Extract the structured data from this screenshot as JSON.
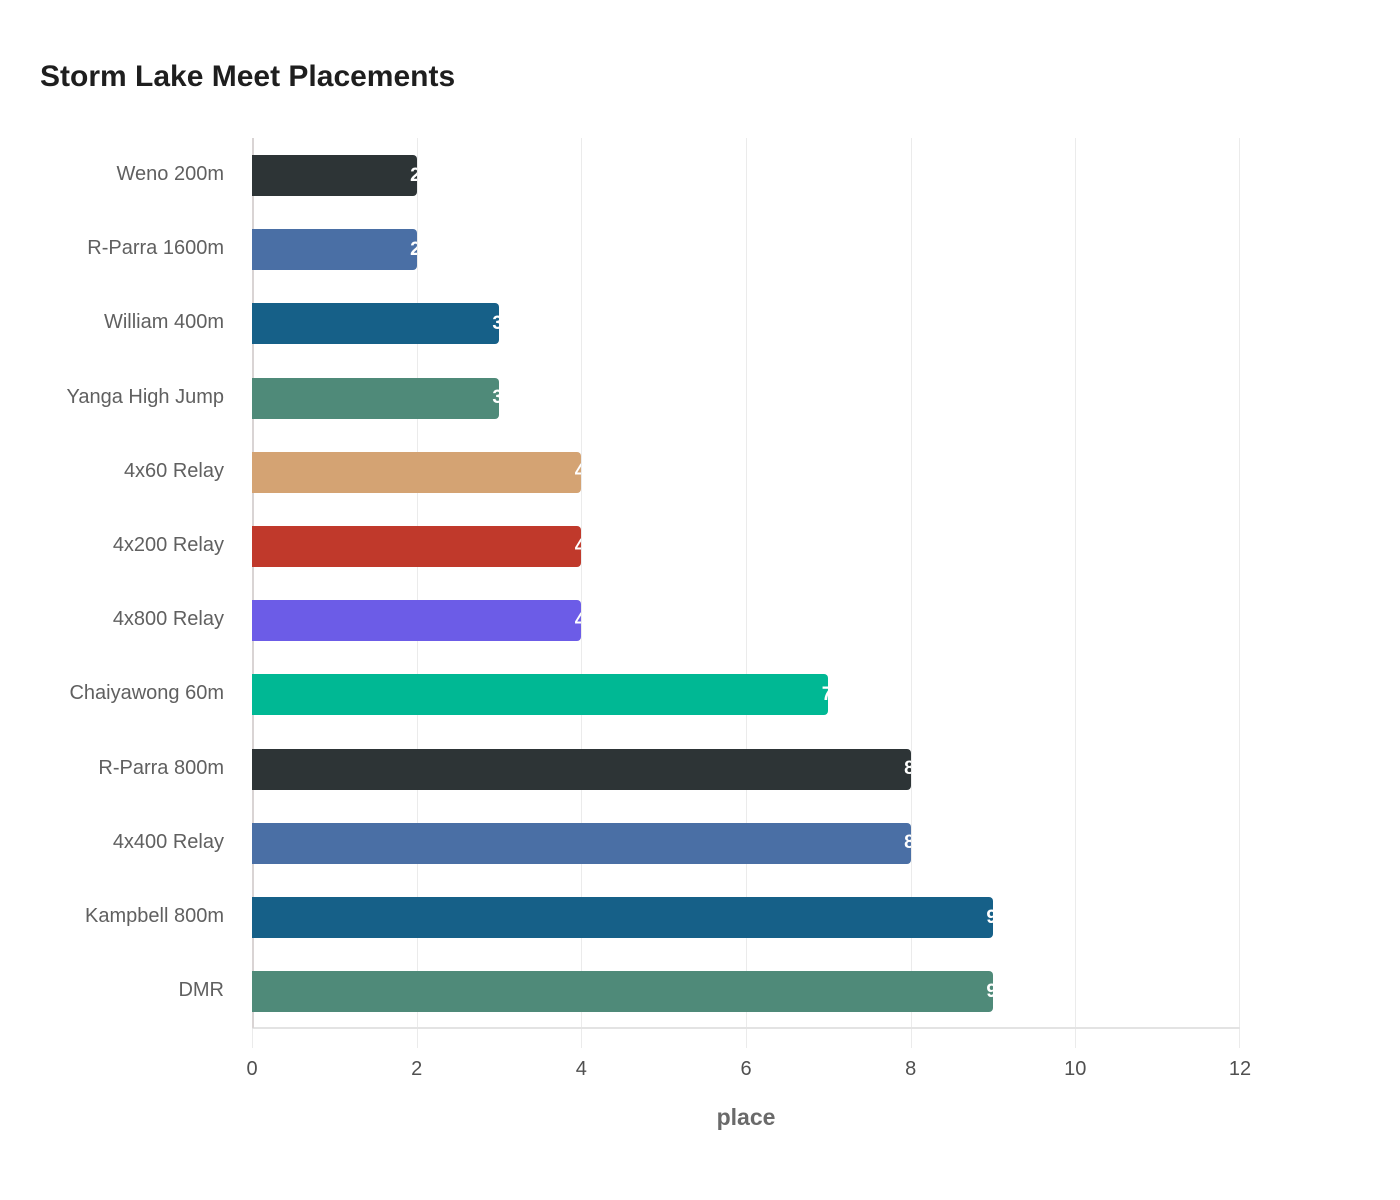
{
  "chart_data": {
    "type": "bar",
    "orientation": "horizontal",
    "title": "Storm Lake Meet Placements",
    "xlabel": "place",
    "ylabel": "",
    "xlim": [
      0,
      12
    ],
    "x_ticks": [
      "0",
      "2",
      "4",
      "6",
      "8",
      "10",
      "12"
    ],
    "grid": true,
    "categories": [
      "Weno 200m",
      "R-Parra 1600m",
      "William 400m",
      "Yanga High Jump",
      "4x60 Relay",
      "4x200 Relay",
      "4x800 Relay",
      "Chaiyawong 60m",
      "R-Parra 800m",
      "4x400 Relay",
      "Kampbell 800m",
      "DMR"
    ],
    "values": [
      2,
      2,
      3,
      3,
      4,
      4,
      4,
      7,
      8,
      8,
      9,
      9
    ],
    "colors": [
      "#2d3436",
      "#4a6fa5",
      "#166088",
      "#4f8a79",
      "#d4a373",
      "#c0392b",
      "#6c5ce7",
      "#00b894",
      "#2d3436",
      "#4a6fa5",
      "#166088",
      "#4f8a79"
    ],
    "value_labels": [
      "2",
      "2",
      "3",
      "3",
      "4",
      "4",
      "4",
      "7",
      "8",
      "8",
      "9",
      "9"
    ]
  }
}
